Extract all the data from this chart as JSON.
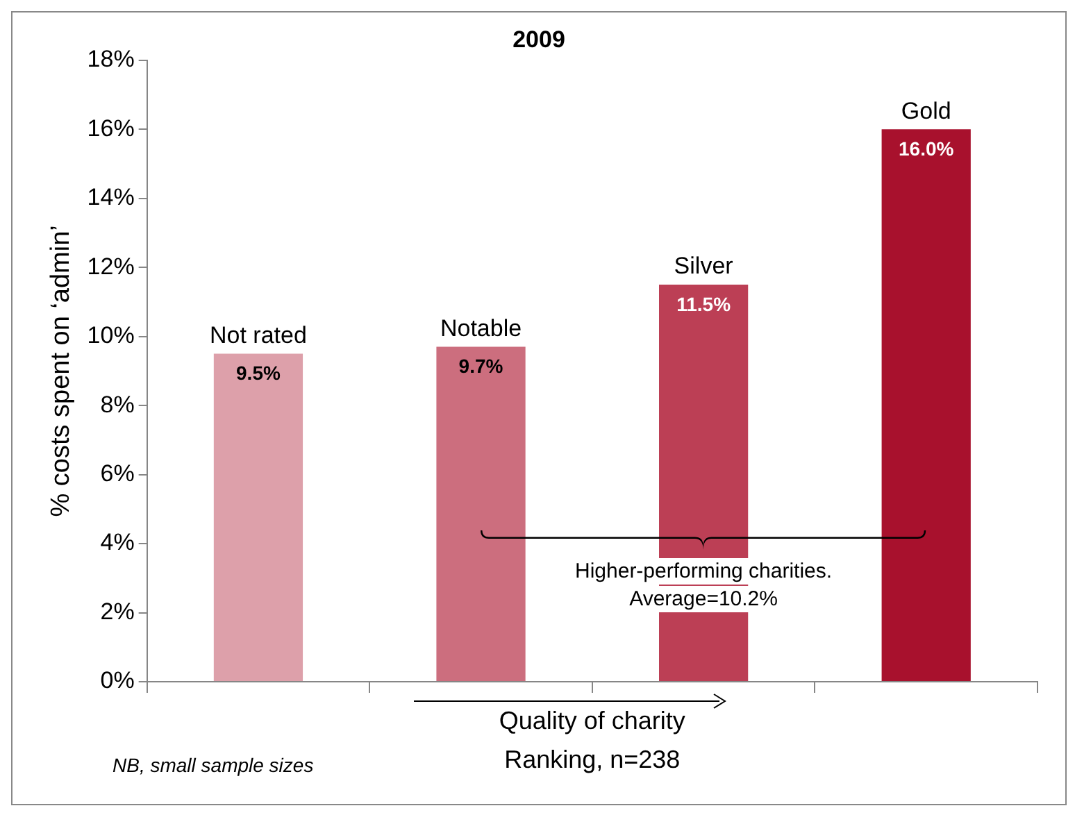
{
  "chart_data": {
    "type": "bar",
    "title": "2009",
    "ylabel": "% costs spent on ‘admin’",
    "xlabel": "Quality of charity",
    "categories": [
      "Not rated",
      "Notable",
      "Silver",
      "Gold"
    ],
    "values": [
      9.5,
      9.7,
      11.5,
      16.0
    ],
    "colors": [
      "#dda0aa",
      "#cc6e7e",
      "#bc3f55",
      "#a8112d"
    ],
    "value_labels": [
      "9.5%",
      "9.7%",
      "11.5%",
      "16.0%"
    ],
    "ylim": [
      0,
      18
    ],
    "yticks": [
      {
        "value": 0,
        "label": "0%"
      },
      {
        "value": 2,
        "label": "2%"
      },
      {
        "value": 4,
        "label": "4%"
      },
      {
        "value": 6,
        "label": "6%"
      },
      {
        "value": 8,
        "label": "8%"
      },
      {
        "value": 10,
        "label": "10%"
      },
      {
        "value": 12,
        "label": "12%"
      },
      {
        "value": 14,
        "label": "14%"
      },
      {
        "value": 16,
        "label": "16%"
      },
      {
        "value": 18,
        "label": "18%"
      }
    ],
    "annotations": [
      "Higher-performing charities.\nAverage=10.2%",
      "Ranking, n=238",
      "NB, small sample sizes"
    ],
    "grid": false,
    "legend": false
  }
}
